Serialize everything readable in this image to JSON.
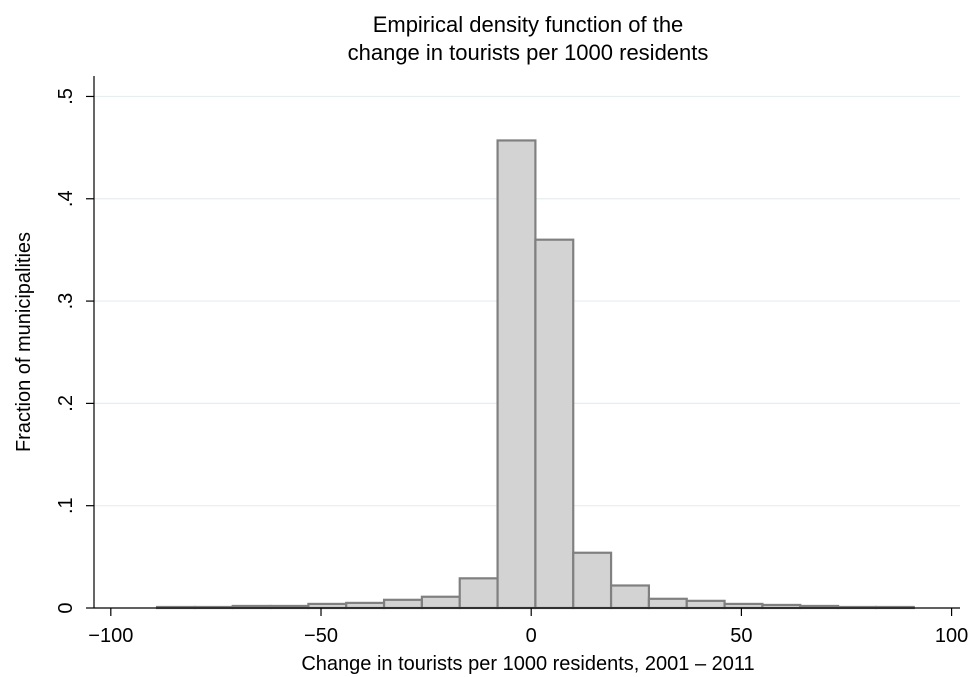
{
  "chart_data": {
    "type": "bar",
    "title_lines": [
      "Empirical density function of the",
      "change in tourists per 1000 residents"
    ],
    "xlabel": "Change in tourists per 1000 residents, 2001 – 2011",
    "ylabel": "Fraction of municipalities",
    "xlim": [
      -104,
      102
    ],
    "ylim": [
      0,
      0.52
    ],
    "x_ticks": [
      {
        "value": -100,
        "label": "−100"
      },
      {
        "value": -50,
        "label": "−50"
      },
      {
        "value": 0,
        "label": "0"
      },
      {
        "value": 50,
        "label": "50"
      },
      {
        "value": 100,
        "label": "100"
      }
    ],
    "y_ticks": [
      {
        "value": 0,
        "label": "0"
      },
      {
        "value": 0.1,
        "label": ".1"
      },
      {
        "value": 0.2,
        "label": ".2"
      },
      {
        "value": 0.3,
        "label": ".3"
      },
      {
        "value": 0.4,
        "label": ".4"
      },
      {
        "value": 0.5,
        "label": ".5"
      }
    ],
    "grid": true,
    "bars": [
      {
        "x0": -89,
        "x1": -80,
        "value": 0.001
      },
      {
        "x0": -80,
        "x1": -71,
        "value": 0.001
      },
      {
        "x0": -71,
        "x1": -62,
        "value": 0.002
      },
      {
        "x0": -62,
        "x1": -53,
        "value": 0.002
      },
      {
        "x0": -53,
        "x1": -44,
        "value": 0.004
      },
      {
        "x0": -44,
        "x1": -35,
        "value": 0.005
      },
      {
        "x0": -35,
        "x1": -26,
        "value": 0.008
      },
      {
        "x0": -26,
        "x1": -17,
        "value": 0.011
      },
      {
        "x0": -17,
        "x1": -8,
        "value": 0.029
      },
      {
        "x0": -8,
        "x1": 1,
        "value": 0.457
      },
      {
        "x0": 1,
        "x1": 10,
        "value": 0.36
      },
      {
        "x0": 10,
        "x1": 19,
        "value": 0.054
      },
      {
        "x0": 19,
        "x1": 28,
        "value": 0.022
      },
      {
        "x0": 28,
        "x1": 37,
        "value": 0.009
      },
      {
        "x0": 37,
        "x1": 46,
        "value": 0.007
      },
      {
        "x0": 46,
        "x1": 55,
        "value": 0.004
      },
      {
        "x0": 55,
        "x1": 64,
        "value": 0.003
      },
      {
        "x0": 64,
        "x1": 73,
        "value": 0.002
      },
      {
        "x0": 73,
        "x1": 82,
        "value": 0.001
      },
      {
        "x0": 82,
        "x1": 91,
        "value": 0.001
      }
    ],
    "colors": {
      "bar_fill": "#d3d3d3",
      "bar_edge": "#808080",
      "grid": "#e7eef0"
    }
  }
}
